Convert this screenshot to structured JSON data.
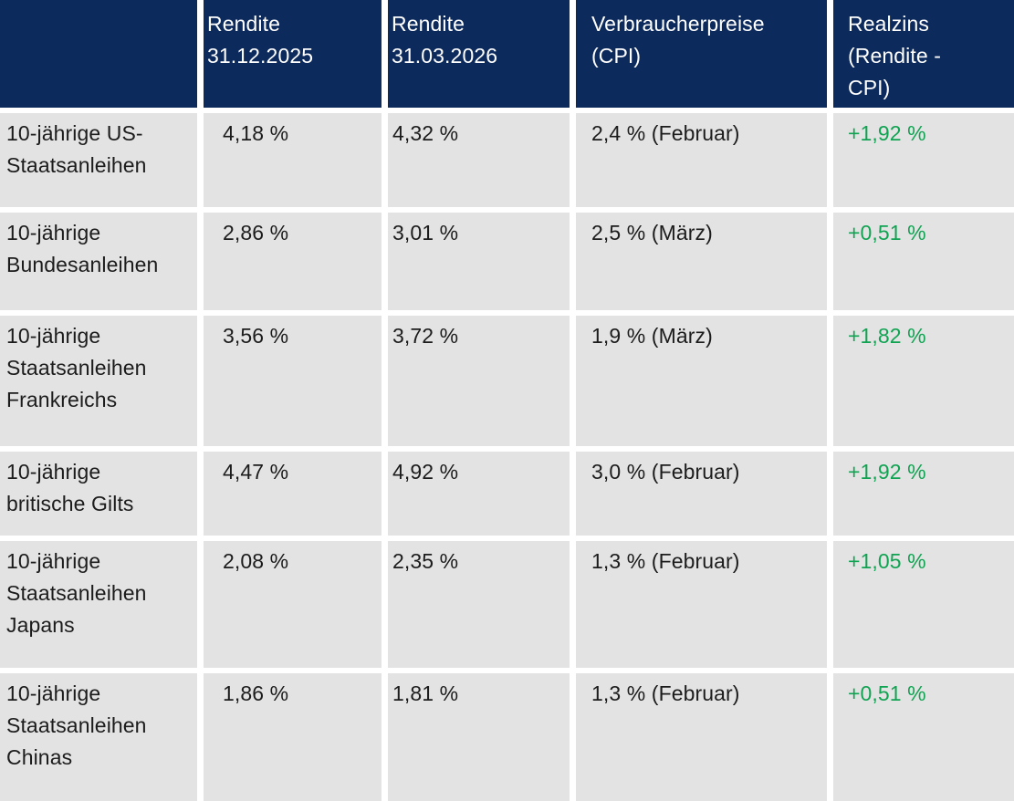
{
  "colors": {
    "header_bg": "#0d2a5c",
    "row_bg": "#e3e3e3",
    "positive_green": "#10a352",
    "text": "#1c1c1c",
    "header_text": "#ffffff"
  },
  "header": {
    "cells": [
      "",
      "Rendite\n31.12.2025",
      "Rendite\n31.03.2026",
      "Verbraucherpreise\n(CPI)",
      "Realzins\n(Rendite -\nCPI)"
    ]
  },
  "rows": [
    {
      "label": "10-jährige US-\nStaatsanleihen",
      "rendite_2025": "4,18 %",
      "rendite_2026": "4,32 %",
      "cpi": "2,4 % (Februar)",
      "realzins": "+1,92 %"
    },
    {
      "label": "10-jährige\nBundesanleihen",
      "rendite_2025": "2,86 %",
      "rendite_2026": "3,01 %",
      "cpi": "2,5 % (März)",
      "realzins": "+0,51 %"
    },
    {
      "label": "10-jährige\nStaatsanleihen\nFrankreichs",
      "rendite_2025": "3,56 %",
      "rendite_2026": "3,72 %",
      "cpi": "1,9 % (März)",
      "realzins": "+1,82 %"
    },
    {
      "label": "10-jährige\nbritische Gilts",
      "rendite_2025": "4,47 %",
      "rendite_2026": "4,92 %",
      "cpi": "3,0 % (Februar)",
      "realzins": "+1,92 %"
    },
    {
      "label": "10-jährige\nStaatsanleihen\nJapans",
      "rendite_2025": "2,08 %",
      "rendite_2026": "2,35 %",
      "cpi": "1,3 % (Februar)",
      "realzins": "+1,05 %"
    },
    {
      "label": "10-jährige\nStaatsanleihen\nChinas",
      "rendite_2025": "1,86 %",
      "rendite_2026": "1,81 %",
      "cpi": "1,3 % (Februar)",
      "realzins": "+0,51 %"
    }
  ],
  "chart_data": {
    "type": "table",
    "columns": [
      "",
      "Rendite 31.12.2025",
      "Rendite 31.03.2026",
      "Verbraucherpreise (CPI)",
      "Realzins (Rendite - CPI)"
    ],
    "rows": [
      [
        "10-jährige US-Staatsanleihen",
        "4,18 %",
        "4,32 %",
        "2,4 % (Februar)",
        "+1,92 %"
      ],
      [
        "10-jährige Bundesanleihen",
        "2,86 %",
        "3,01 %",
        "2,5 % (März)",
        "+0,51 %"
      ],
      [
        "10-jährige Staatsanleihen Frankreichs",
        "3,56 %",
        "3,72 %",
        "1,9 % (März)",
        "+1,82 %"
      ],
      [
        "10-jährige britische Gilts",
        "4,47 %",
        "4,92 %",
        "3,0 % (Februar)",
        "+1,92 %"
      ],
      [
        "10-jährige Staatsanleihen Japans",
        "2,08 %",
        "2,35 %",
        "1,3 % (Februar)",
        "+1,05 %"
      ],
      [
        "10-jährige Staatsanleihen Chinas",
        "1,86 %",
        "1,81 %",
        "1,3 % (Februar)",
        "+0,51 %"
      ]
    ],
    "notes": "Realzins column values rendered in green (positive values)"
  }
}
